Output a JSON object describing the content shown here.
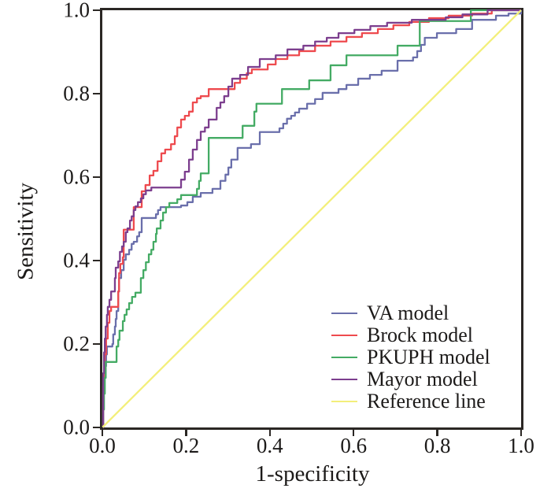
{
  "chart_data": {
    "type": "line",
    "subtype": "roc-curves",
    "title": "",
    "xlabel": "1-specificity",
    "ylabel": "Sensitivity",
    "xlim": [
      0.0,
      1.0
    ],
    "ylim": [
      0.0,
      1.0
    ],
    "xticks": [
      "0.0",
      "0.2",
      "0.4",
      "0.6",
      "0.8",
      "1.0"
    ],
    "yticks": [
      "0.0",
      "0.2",
      "0.4",
      "0.6",
      "0.8",
      "1.0"
    ],
    "grid": false,
    "legend_position": "lower right",
    "axes": {
      "frame": true,
      "frame_color": "#2b2724",
      "tick_direction": "out",
      "background": "#ffffff",
      "text_color": "#1c1a19"
    },
    "series": [
      {
        "id": "va",
        "name": "VA model",
        "color": "#6a6fab",
        "interpolation": "step-after",
        "points": [
          [
            0,
            0
          ],
          [
            0.002,
            0.081
          ],
          [
            0.004,
            0.119
          ],
          [
            0.008,
            0.147
          ],
          [
            0.009,
            0.175
          ],
          [
            0.011,
            0.194
          ],
          [
            0.024,
            0.2
          ],
          [
            0.026,
            0.223
          ],
          [
            0.03,
            0.242
          ],
          [
            0.032,
            0.26
          ],
          [
            0.034,
            0.279
          ],
          [
            0.038,
            0.326
          ],
          [
            0.04,
            0.358
          ],
          [
            0.045,
            0.377
          ],
          [
            0.051,
            0.402
          ],
          [
            0.056,
            0.415
          ],
          [
            0.064,
            0.426
          ],
          [
            0.07,
            0.44
          ],
          [
            0.075,
            0.445
          ],
          [
            0.083,
            0.458
          ],
          [
            0.088,
            0.468
          ],
          [
            0.094,
            0.502
          ],
          [
            0.128,
            0.511
          ],
          [
            0.133,
            0.521
          ],
          [
            0.139,
            0.528
          ],
          [
            0.188,
            0.532
          ],
          [
            0.203,
            0.54
          ],
          [
            0.216,
            0.553
          ],
          [
            0.235,
            0.562
          ],
          [
            0.263,
            0.572
          ],
          [
            0.282,
            0.591
          ],
          [
            0.294,
            0.606
          ],
          [
            0.301,
            0.623
          ],
          [
            0.308,
            0.642
          ],
          [
            0.323,
            0.67
          ],
          [
            0.355,
            0.679
          ],
          [
            0.376,
            0.708
          ],
          [
            0.423,
            0.717
          ],
          [
            0.432,
            0.728
          ],
          [
            0.441,
            0.74
          ],
          [
            0.451,
            0.747
          ],
          [
            0.46,
            0.755
          ],
          [
            0.47,
            0.764
          ],
          [
            0.489,
            0.776
          ],
          [
            0.508,
            0.787
          ],
          [
            0.526,
            0.802
          ],
          [
            0.564,
            0.811
          ],
          [
            0.583,
            0.821
          ],
          [
            0.611,
            0.836
          ],
          [
            0.639,
            0.845
          ],
          [
            0.667,
            0.855
          ],
          [
            0.705,
            0.879
          ],
          [
            0.742,
            0.887
          ],
          [
            0.752,
            0.902
          ],
          [
            0.761,
            0.917
          ],
          [
            0.77,
            0.934
          ],
          [
            0.799,
            0.945
          ],
          [
            0.845,
            0.955
          ],
          [
            0.883,
            0.977
          ],
          [
            0.94,
            0.987
          ],
          [
            0.97,
            0.992
          ],
          [
            1,
            1
          ]
        ]
      },
      {
        "id": "brock",
        "name": "Brock model",
        "color": "#ee4a4e",
        "interpolation": "step-after",
        "points": [
          [
            0,
            0
          ],
          [
            0.002,
            0.1
          ],
          [
            0.004,
            0.138
          ],
          [
            0.006,
            0.175
          ],
          [
            0.009,
            0.213
          ],
          [
            0.013,
            0.251
          ],
          [
            0.017,
            0.279
          ],
          [
            0.021,
            0.289
          ],
          [
            0.038,
            0.326
          ],
          [
            0.04,
            0.37
          ],
          [
            0.043,
            0.392
          ],
          [
            0.049,
            0.408
          ],
          [
            0.051,
            0.474
          ],
          [
            0.075,
            0.528
          ],
          [
            0.094,
            0.566
          ],
          [
            0.103,
            0.581
          ],
          [
            0.113,
            0.604
          ],
          [
            0.122,
            0.615
          ],
          [
            0.132,
            0.638
          ],
          [
            0.141,
            0.657
          ],
          [
            0.15,
            0.666
          ],
          [
            0.164,
            0.679
          ],
          [
            0.173,
            0.698
          ],
          [
            0.179,
            0.719
          ],
          [
            0.188,
            0.738
          ],
          [
            0.197,
            0.747
          ],
          [
            0.207,
            0.757
          ],
          [
            0.216,
            0.779
          ],
          [
            0.226,
            0.789
          ],
          [
            0.235,
            0.794
          ],
          [
            0.254,
            0.811
          ],
          [
            0.316,
            0.826
          ],
          [
            0.329,
            0.836
          ],
          [
            0.345,
            0.849
          ],
          [
            0.357,
            0.858
          ],
          [
            0.395,
            0.87
          ],
          [
            0.414,
            0.883
          ],
          [
            0.442,
            0.892
          ],
          [
            0.47,
            0.902
          ],
          [
            0.508,
            0.915
          ],
          [
            0.545,
            0.925
          ],
          [
            0.583,
            0.936
          ],
          [
            0.62,
            0.945
          ],
          [
            0.658,
            0.955
          ],
          [
            0.695,
            0.964
          ],
          [
            0.733,
            0.972
          ],
          [
            0.78,
            0.981
          ],
          [
            0.827,
            0.987
          ],
          [
            0.883,
            0.992
          ],
          [
            0.93,
            1
          ],
          [
            1,
            1
          ]
        ]
      },
      {
        "id": "pkuph",
        "name": "PKUPH model",
        "color": "#44ab64",
        "interpolation": "step-after",
        "points": [
          [
            0,
            0
          ],
          [
            0.002,
            0.043
          ],
          [
            0.004,
            0.081
          ],
          [
            0.006,
            0.119
          ],
          [
            0.008,
            0.157
          ],
          [
            0.034,
            0.194
          ],
          [
            0.038,
            0.21
          ],
          [
            0.041,
            0.232
          ],
          [
            0.049,
            0.255
          ],
          [
            0.053,
            0.27
          ],
          [
            0.058,
            0.283
          ],
          [
            0.064,
            0.298
          ],
          [
            0.071,
            0.313
          ],
          [
            0.079,
            0.323
          ],
          [
            0.092,
            0.358
          ],
          [
            0.098,
            0.377
          ],
          [
            0.104,
            0.396
          ],
          [
            0.111,
            0.415
          ],
          [
            0.117,
            0.426
          ],
          [
            0.122,
            0.445
          ],
          [
            0.128,
            0.464
          ],
          [
            0.13,
            0.477
          ],
          [
            0.139,
            0.496
          ],
          [
            0.145,
            0.515
          ],
          [
            0.152,
            0.528
          ],
          [
            0.16,
            0.538
          ],
          [
            0.179,
            0.547
          ],
          [
            0.188,
            0.557
          ],
          [
            0.226,
            0.572
          ],
          [
            0.231,
            0.591
          ],
          [
            0.235,
            0.609
          ],
          [
            0.254,
            0.694
          ],
          [
            0.335,
            0.723
          ],
          [
            0.363,
            0.757
          ],
          [
            0.368,
            0.776
          ],
          [
            0.429,
            0.811
          ],
          [
            0.494,
            0.832
          ],
          [
            0.545,
            0.868
          ],
          [
            0.583,
            0.892
          ],
          [
            0.705,
            0.915
          ],
          [
            0.758,
            0.974
          ],
          [
            0.88,
            1
          ],
          [
            1,
            1
          ]
        ]
      },
      {
        "id": "mayor",
        "name": "Mayor model",
        "color": "#7c3e8e",
        "interpolation": "step-after",
        "points": [
          [
            0,
            0
          ],
          [
            0.002,
            0.13
          ],
          [
            0.004,
            0.18
          ],
          [
            0.006,
            0.213
          ],
          [
            0.008,
            0.242
          ],
          [
            0.011,
            0.27
          ],
          [
            0.013,
            0.289
          ],
          [
            0.017,
            0.306
          ],
          [
            0.021,
            0.326
          ],
          [
            0.03,
            0.358
          ],
          [
            0.032,
            0.383
          ],
          [
            0.038,
            0.398
          ],
          [
            0.042,
            0.421
          ],
          [
            0.047,
            0.434
          ],
          [
            0.051,
            0.445
          ],
          [
            0.056,
            0.468
          ],
          [
            0.06,
            0.477
          ],
          [
            0.066,
            0.496
          ],
          [
            0.07,
            0.506
          ],
          [
            0.075,
            0.521
          ],
          [
            0.079,
            0.53
          ],
          [
            0.085,
            0.54
          ],
          [
            0.092,
            0.549
          ],
          [
            0.098,
            0.559
          ],
          [
            0.104,
            0.568
          ],
          [
            0.117,
            0.575
          ],
          [
            0.188,
            0.594
          ],
          [
            0.197,
            0.613
          ],
          [
            0.207,
            0.642
          ],
          [
            0.216,
            0.666
          ],
          [
            0.226,
            0.689
          ],
          [
            0.235,
            0.709
          ],
          [
            0.245,
            0.719
          ],
          [
            0.254,
            0.738
          ],
          [
            0.273,
            0.766
          ],
          [
            0.282,
            0.779
          ],
          [
            0.291,
            0.794
          ],
          [
            0.301,
            0.817
          ],
          [
            0.31,
            0.836
          ],
          [
            0.329,
            0.845
          ],
          [
            0.348,
            0.864
          ],
          [
            0.376,
            0.883
          ],
          [
            0.414,
            0.892
          ],
          [
            0.442,
            0.906
          ],
          [
            0.48,
            0.915
          ],
          [
            0.508,
            0.925
          ],
          [
            0.536,
            0.934
          ],
          [
            0.564,
            0.945
          ],
          [
            0.602,
            0.953
          ],
          [
            0.64,
            0.962
          ],
          [
            0.68,
            0.97
          ],
          [
            0.739,
            0.977
          ],
          [
            0.82,
            0.983
          ],
          [
            0.86,
            0.99
          ],
          [
            0.92,
            1
          ],
          [
            1,
            1
          ]
        ]
      },
      {
        "id": "reference",
        "name": "Reference line",
        "color": "#f3ef7b",
        "interpolation": "linear",
        "points": [
          [
            0,
            0
          ],
          [
            1,
            1
          ]
        ]
      }
    ]
  }
}
